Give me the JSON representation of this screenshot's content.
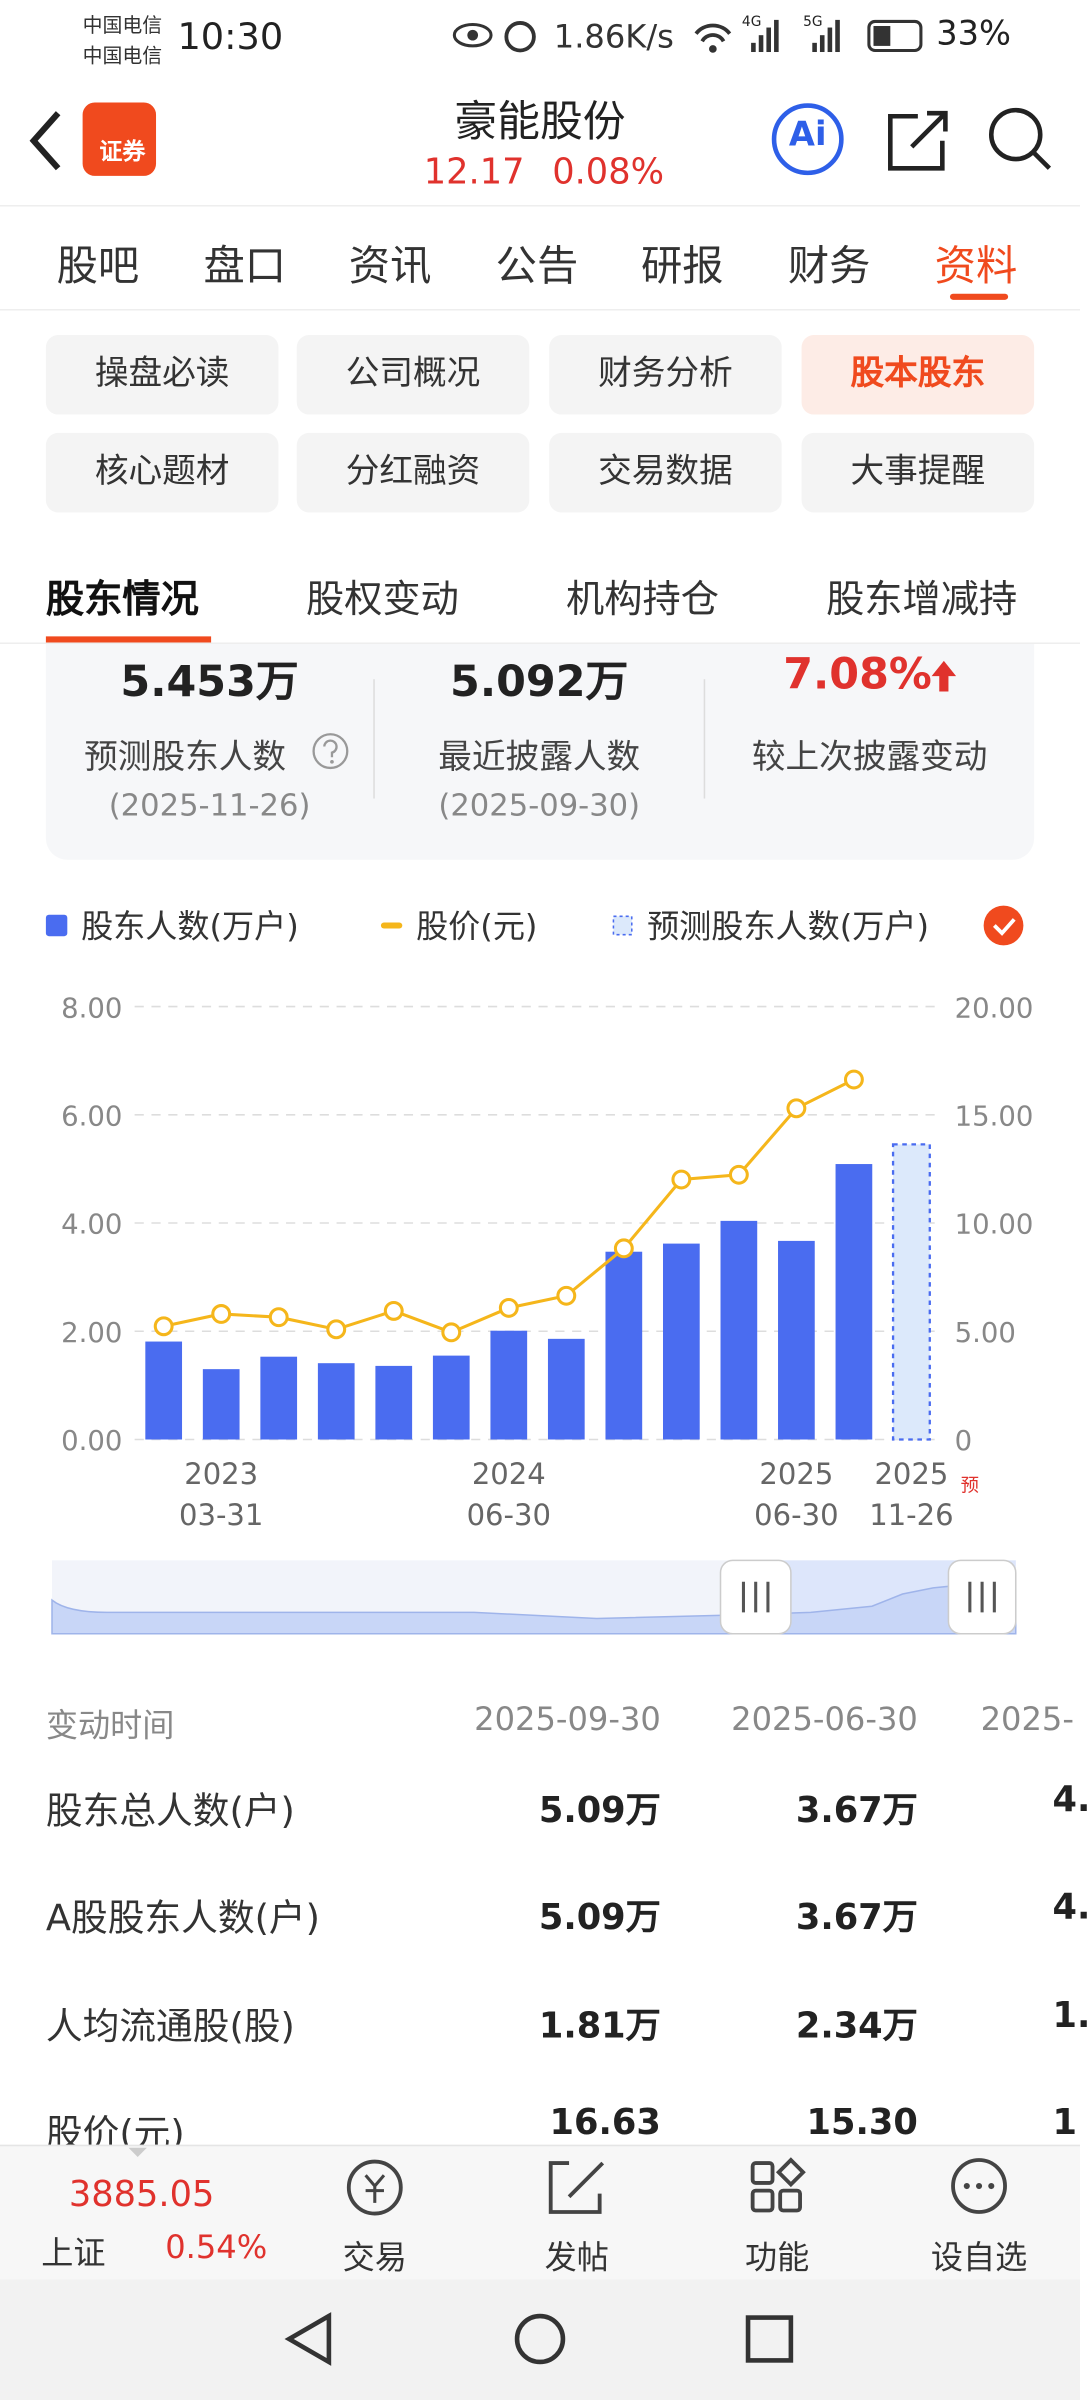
{
  "status_bar": {
    "carrier1": "中国电信",
    "carrier2": "中国电信",
    "time": "10:30",
    "speed": "1.86K/s",
    "net1": "4G",
    "net2": "5G",
    "battery": "33%"
  },
  "header": {
    "badge": "证券",
    "title": "豪能股份",
    "price": "12.17",
    "change": "0.08%",
    "ai": "Ai"
  },
  "tabs": [
    "股吧",
    "盘口",
    "资讯",
    "公告",
    "研报",
    "财务",
    "资料"
  ],
  "sub_buttons": [
    "操盘必读",
    "公司概况",
    "财务分析",
    "股本股东",
    "核心题材",
    "分红融资",
    "交易数据",
    "大事提醒"
  ],
  "sub_tabs": [
    "股东情况",
    "股权变动",
    "机构持仓",
    "股东增减持"
  ],
  "stats": [
    {
      "value": "5.453万",
      "label": "预测股东人数",
      "date": "(2025-11-26)"
    },
    {
      "value": "5.092万",
      "label": "最近披露人数",
      "date": "(2025-09-30)"
    },
    {
      "value": "7.08%",
      "label": "较上次披露变动"
    }
  ],
  "chart_data": {
    "type": "bar",
    "categories": [
      null,
      [
        "2023",
        "03-31"
      ],
      null,
      null,
      null,
      null,
      [
        "2024",
        "06-30"
      ],
      null,
      null,
      null,
      null,
      [
        "2025",
        "06-30"
      ],
      null,
      [
        "2025",
        "11-26"
      ]
    ],
    "forecast_mark": "预",
    "series": [
      {
        "name": "股东人数(万户)",
        "color": "#4a6cf0",
        "values": [
          1.81,
          1.3,
          1.53,
          1.41,
          1.36,
          1.55,
          2.01,
          1.86,
          3.47,
          3.62,
          4.04,
          3.67,
          5.09,
          null
        ]
      },
      {
        "name": "股价(元)",
        "color": "#f5b61b",
        "axis": "y2",
        "values": [
          5.23,
          5.8,
          5.65,
          5.09,
          5.94,
          4.95,
          6.08,
          6.64,
          8.83,
          12.01,
          12.23,
          15.3,
          16.63,
          null
        ]
      },
      {
        "name": "预测股东人数(万户)",
        "color": "#dce9fb",
        "values": [
          null,
          null,
          null,
          null,
          null,
          null,
          null,
          null,
          null,
          null,
          null,
          null,
          null,
          5.453
        ]
      }
    ],
    "ylim": [
      0,
      8
    ],
    "yticks": [
      {
        "value": 0,
        "label": "0.00"
      },
      {
        "value": 2,
        "label": "2.00"
      },
      {
        "value": 4,
        "label": "4.00"
      },
      {
        "value": 6,
        "label": "6.00"
      },
      {
        "value": 8,
        "label": "8.00"
      }
    ],
    "y2lim": [
      0,
      20
    ],
    "y2ticks": [
      0,
      {
        "value": 5,
        "label": "5.00"
      },
      {
        "value": 10,
        "label": "10.00"
      },
      {
        "value": 15,
        "label": "15.00"
      },
      {
        "value": 20,
        "label": "20.00"
      }
    ],
    "grid": true
  },
  "table": {
    "header": [
      "变动时间",
      "2025-09-30",
      "2025-06-30",
      "2025-"
    ],
    "rows": [
      [
        "股东总人数(户)",
        "5.09万",
        "3.67万",
        "4."
      ],
      [
        "A股股东人数(户)",
        "5.09万",
        "3.67万",
        "4."
      ],
      [
        "人均流通股(股)",
        "1.81万",
        "2.34万",
        "1."
      ],
      [
        "股价(元)",
        "16.63",
        "15.30",
        "1"
      ]
    ]
  },
  "bottom_bar": {
    "index_value": "3885.05",
    "index_name": "上证",
    "index_change": "0.54%",
    "buttons": [
      "交易",
      "发帖",
      "功能",
      "设自选"
    ]
  }
}
